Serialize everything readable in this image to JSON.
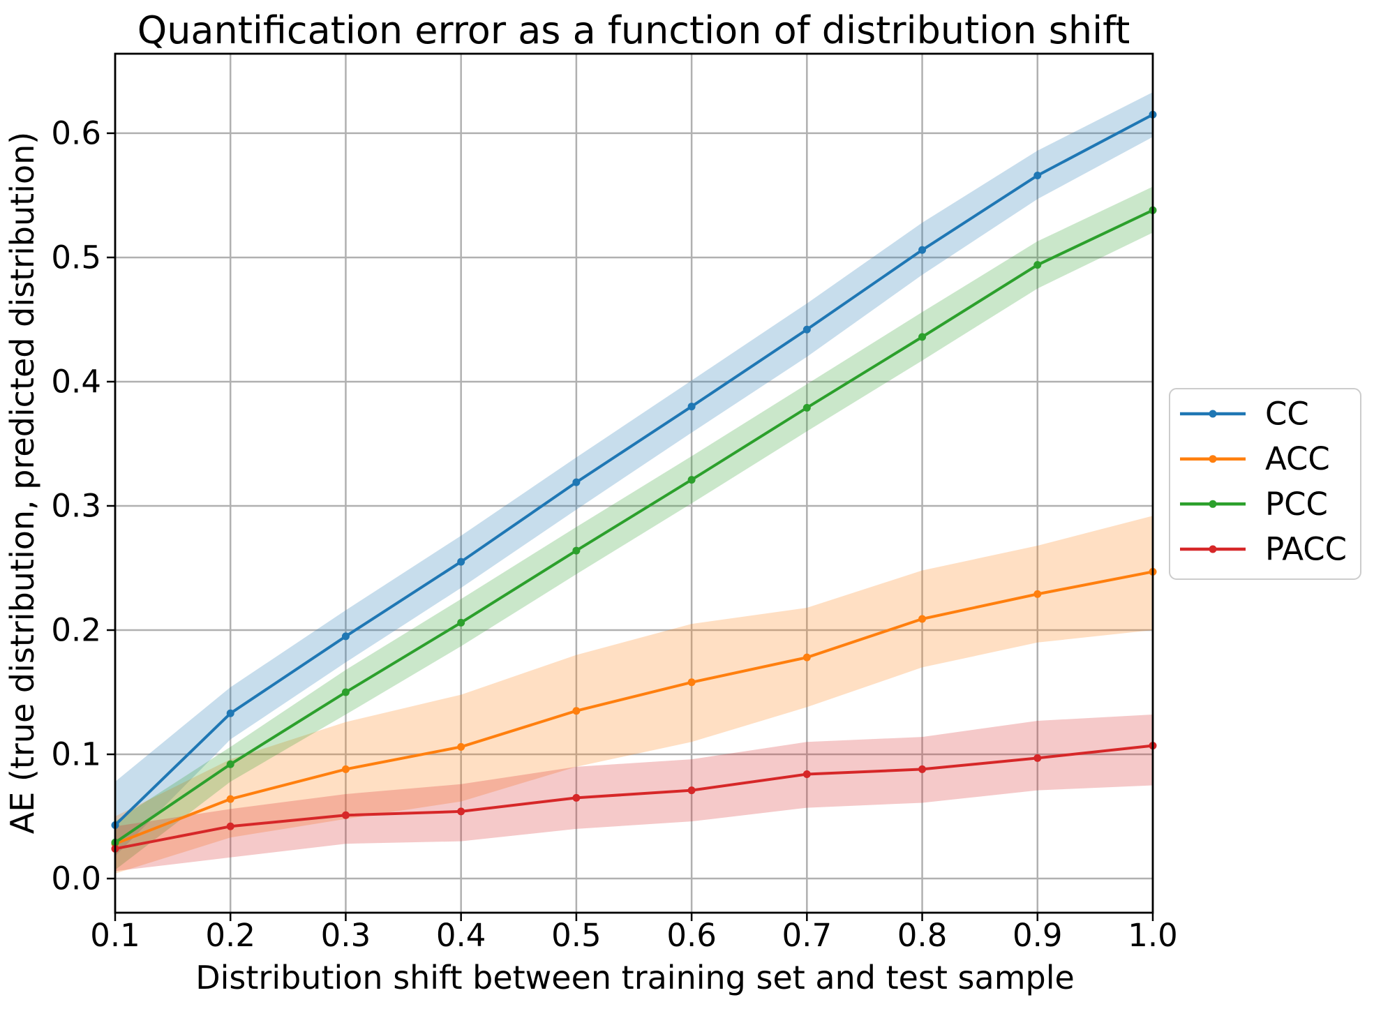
{
  "chart_data": {
    "type": "line",
    "title": "Quantification error as a function of distribution shift",
    "xlabel": "Distribution shift between training set and test sample",
    "ylabel": "AE (true distribution, predicted distribution)",
    "x": [
      0.1,
      0.2,
      0.3,
      0.4,
      0.5,
      0.6,
      0.7,
      0.8,
      0.9,
      1.0
    ],
    "x_tick_labels": [
      "0.1",
      "0.2",
      "0.3",
      "0.4",
      "0.5",
      "0.6",
      "0.7",
      "0.8",
      "0.9",
      "1.0"
    ],
    "y_ticks": [
      0.0,
      0.1,
      0.2,
      0.3,
      0.4,
      0.5,
      0.6
    ],
    "y_tick_labels": [
      "0.0",
      "0.1",
      "0.2",
      "0.3",
      "0.4",
      "0.5",
      "0.6"
    ],
    "xlim": [
      0.1,
      1.0
    ],
    "ylim": [
      -0.0275,
      0.664
    ],
    "grid": true,
    "grid_color": "#b0b0b0",
    "spine_color": "#000000",
    "background_color": "#ffffff",
    "band_alpha": 0.25,
    "legend_position": "right of axes, outside",
    "legend_border_color": "#cccccc",
    "series": [
      {
        "name": "CC",
        "color": "#1f77b4",
        "values": [
          0.043,
          0.133,
          0.195,
          0.255,
          0.319,
          0.38,
          0.442,
          0.506,
          0.566,
          0.615
        ],
        "band_lower": [
          0.018,
          0.112,
          0.174,
          0.234,
          0.297,
          0.359,
          0.42,
          0.486,
          0.547,
          0.597
        ],
        "band_upper": [
          0.078,
          0.154,
          0.216,
          0.276,
          0.339,
          0.401,
          0.463,
          0.528,
          0.586,
          0.633
        ]
      },
      {
        "name": "ACC",
        "color": "#ff7f0e",
        "values": [
          0.028,
          0.064,
          0.088,
          0.106,
          0.135,
          0.158,
          0.178,
          0.209,
          0.229,
          0.247
        ],
        "band_lower": [
          0.004,
          0.033,
          0.048,
          0.062,
          0.09,
          0.11,
          0.138,
          0.17,
          0.19,
          0.2
        ],
        "band_upper": [
          0.05,
          0.096,
          0.126,
          0.148,
          0.18,
          0.205,
          0.218,
          0.248,
          0.268,
          0.292
        ]
      },
      {
        "name": "PCC",
        "color": "#2ca02c",
        "values": [
          0.029,
          0.092,
          0.15,
          0.206,
          0.264,
          0.321,
          0.379,
          0.436,
          0.494,
          0.538
        ],
        "band_lower": [
          0.007,
          0.078,
          0.132,
          0.187,
          0.245,
          0.302,
          0.36,
          0.417,
          0.475,
          0.52
        ],
        "band_upper": [
          0.046,
          0.106,
          0.168,
          0.225,
          0.283,
          0.34,
          0.398,
          0.456,
          0.513,
          0.557
        ]
      },
      {
        "name": "PACC",
        "color": "#d62728",
        "values": [
          0.024,
          0.042,
          0.051,
          0.054,
          0.065,
          0.071,
          0.084,
          0.088,
          0.097,
          0.107
        ],
        "band_lower": [
          0.006,
          0.017,
          0.028,
          0.03,
          0.04,
          0.046,
          0.057,
          0.061,
          0.071,
          0.075
        ],
        "band_upper": [
          0.042,
          0.056,
          0.068,
          0.076,
          0.09,
          0.096,
          0.11,
          0.114,
          0.127,
          0.132
        ]
      }
    ]
  }
}
